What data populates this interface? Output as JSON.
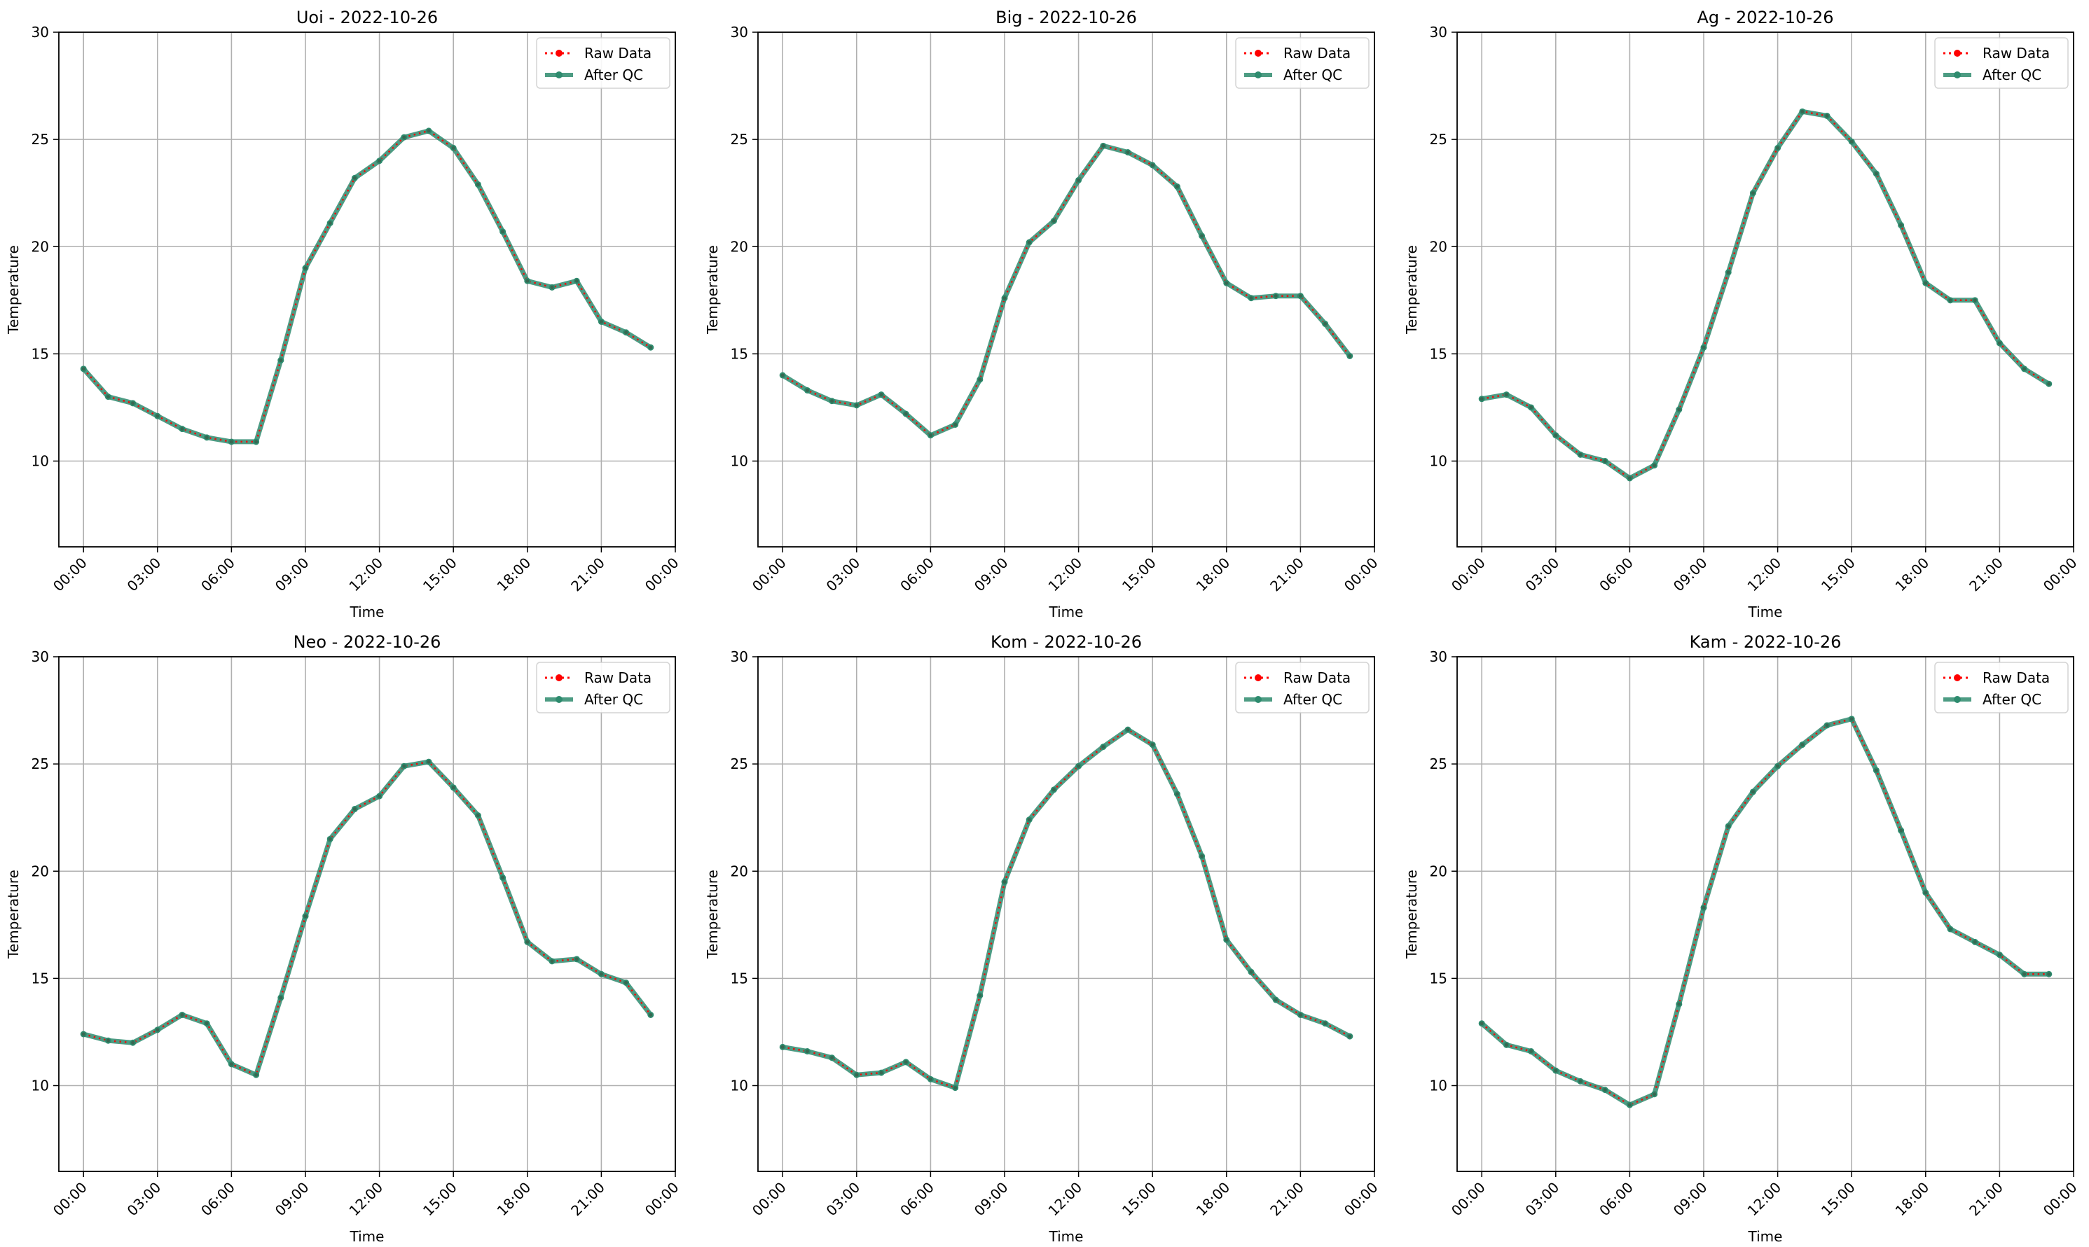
{
  "colors": {
    "raw": "#ff0000",
    "after_qc": "#2e8b6e",
    "grid": "#b0b0b0",
    "axis": "#000000"
  },
  "chart_data": [
    {
      "type": "line",
      "title": "Uoi - 2022-10-26",
      "xlabel": "Time",
      "ylabel": "Temperature",
      "ylim": [
        6,
        30
      ],
      "xlim_hours": [
        -1,
        24
      ],
      "yticks": [
        10,
        15,
        20,
        25,
        30
      ],
      "xticks": [
        "00:00",
        "03:00",
        "06:00",
        "09:00",
        "12:00",
        "15:00",
        "18:00",
        "21:00",
        "00:00"
      ],
      "grid": true,
      "legend": "top-right",
      "x_hours": [
        0,
        1,
        2,
        3,
        4,
        5,
        6,
        7,
        8,
        9,
        10,
        11,
        12,
        13,
        14,
        15,
        16,
        17,
        18,
        19,
        20,
        21,
        22,
        23
      ],
      "series": [
        {
          "name": "Raw Data",
          "values": [
            14.3,
            13.0,
            12.7,
            12.1,
            11.5,
            11.1,
            10.9,
            10.9,
            14.7,
            19.0,
            21.1,
            23.2,
            24.0,
            25.1,
            25.4,
            24.6,
            22.9,
            20.7,
            18.4,
            18.1,
            18.4,
            16.5,
            16.0,
            15.3
          ]
        },
        {
          "name": "After QC",
          "values": [
            14.3,
            13.0,
            12.7,
            12.1,
            11.5,
            11.1,
            10.9,
            10.9,
            14.7,
            19.0,
            21.1,
            23.2,
            24.0,
            25.1,
            25.4,
            24.6,
            22.9,
            20.7,
            18.4,
            18.1,
            18.4,
            16.5,
            16.0,
            15.3
          ]
        }
      ]
    },
    {
      "type": "line",
      "title": "Big - 2022-10-26",
      "xlabel": "Time",
      "ylabel": "Temperature",
      "ylim": [
        6,
        30
      ],
      "xlim_hours": [
        -1,
        24
      ],
      "yticks": [
        10,
        15,
        20,
        25,
        30
      ],
      "xticks": [
        "00:00",
        "03:00",
        "06:00",
        "09:00",
        "12:00",
        "15:00",
        "18:00",
        "21:00",
        "00:00"
      ],
      "grid": true,
      "legend": "top-right",
      "x_hours": [
        0,
        1,
        2,
        3,
        4,
        5,
        6,
        7,
        8,
        9,
        10,
        11,
        12,
        13,
        14,
        15,
        16,
        17,
        18,
        19,
        20,
        21,
        22,
        23
      ],
      "series": [
        {
          "name": "Raw Data",
          "values": [
            14.0,
            13.3,
            12.8,
            12.6,
            13.1,
            12.2,
            11.2,
            11.7,
            13.8,
            17.6,
            20.2,
            21.2,
            23.1,
            24.7,
            24.4,
            23.8,
            22.8,
            20.5,
            18.3,
            17.6,
            17.7,
            17.7,
            16.4,
            14.9
          ]
        },
        {
          "name": "After QC",
          "values": [
            14.0,
            13.3,
            12.8,
            12.6,
            13.1,
            12.2,
            11.2,
            11.7,
            13.8,
            17.6,
            20.2,
            21.2,
            23.1,
            24.7,
            24.4,
            23.8,
            22.8,
            20.5,
            18.3,
            17.6,
            17.7,
            17.7,
            16.4,
            14.9
          ]
        }
      ]
    },
    {
      "type": "line",
      "title": "Ag - 2022-10-26",
      "xlabel": "Time",
      "ylabel": "Temperature",
      "ylim": [
        6,
        30
      ],
      "xlim_hours": [
        -1,
        24
      ],
      "yticks": [
        10,
        15,
        20,
        25,
        30
      ],
      "xticks": [
        "00:00",
        "03:00",
        "06:00",
        "09:00",
        "12:00",
        "15:00",
        "18:00",
        "21:00",
        "00:00"
      ],
      "grid": true,
      "legend": "top-right",
      "x_hours": [
        0,
        1,
        2,
        3,
        4,
        5,
        6,
        7,
        8,
        9,
        10,
        11,
        12,
        13,
        14,
        15,
        16,
        17,
        18,
        19,
        20,
        21,
        22,
        23
      ],
      "series": [
        {
          "name": "Raw Data",
          "values": [
            12.9,
            13.1,
            12.5,
            11.2,
            10.3,
            10.0,
            9.2,
            9.8,
            12.4,
            15.3,
            18.8,
            22.5,
            24.6,
            26.3,
            26.1,
            24.9,
            23.4,
            21.0,
            18.3,
            17.5,
            17.5,
            15.5,
            14.3,
            13.6
          ]
        },
        {
          "name": "After QC",
          "values": [
            12.9,
            13.1,
            12.5,
            11.2,
            10.3,
            10.0,
            9.2,
            9.8,
            12.4,
            15.3,
            18.8,
            22.5,
            24.6,
            26.3,
            26.1,
            24.9,
            23.4,
            21.0,
            18.3,
            17.5,
            17.5,
            15.5,
            14.3,
            13.6
          ]
        }
      ]
    },
    {
      "type": "line",
      "title": "Neo - 2022-10-26",
      "xlabel": "Time",
      "ylabel": "Temperature",
      "ylim": [
        6,
        30
      ],
      "xlim_hours": [
        -1,
        24
      ],
      "yticks": [
        10,
        15,
        20,
        25,
        30
      ],
      "xticks": [
        "00:00",
        "03:00",
        "06:00",
        "09:00",
        "12:00",
        "15:00",
        "18:00",
        "21:00",
        "00:00"
      ],
      "grid": true,
      "legend": "top-right",
      "x_hours": [
        0,
        1,
        2,
        3,
        4,
        5,
        6,
        7,
        8,
        9,
        10,
        11,
        12,
        13,
        14,
        15,
        16,
        17,
        18,
        19,
        20,
        21,
        22,
        23
      ],
      "series": [
        {
          "name": "Raw Data",
          "values": [
            12.4,
            12.1,
            12.0,
            12.6,
            13.3,
            12.9,
            11.0,
            10.5,
            14.1,
            17.9,
            21.5,
            22.9,
            23.5,
            24.9,
            25.1,
            23.9,
            22.6,
            19.7,
            16.7,
            15.8,
            15.9,
            15.2,
            14.8,
            13.3
          ]
        },
        {
          "name": "After QC",
          "values": [
            12.4,
            12.1,
            12.0,
            12.6,
            13.3,
            12.9,
            11.0,
            10.5,
            14.1,
            17.9,
            21.5,
            22.9,
            23.5,
            24.9,
            25.1,
            23.9,
            22.6,
            19.7,
            16.7,
            15.8,
            15.9,
            15.2,
            14.8,
            13.3
          ]
        }
      ]
    },
    {
      "type": "line",
      "title": "Kom - 2022-10-26",
      "xlabel": "Time",
      "ylabel": "Temperature",
      "ylim": [
        6,
        30
      ],
      "xlim_hours": [
        -1,
        24
      ],
      "yticks": [
        10,
        15,
        20,
        25,
        30
      ],
      "xticks": [
        "00:00",
        "03:00",
        "06:00",
        "09:00",
        "12:00",
        "15:00",
        "18:00",
        "21:00",
        "00:00"
      ],
      "grid": true,
      "legend": "top-right",
      "x_hours": [
        0,
        1,
        2,
        3,
        4,
        5,
        6,
        7,
        8,
        9,
        10,
        11,
        12,
        13,
        14,
        15,
        16,
        17,
        18,
        19,
        20,
        21,
        22,
        23
      ],
      "series": [
        {
          "name": "Raw Data",
          "values": [
            11.8,
            11.6,
            11.3,
            10.5,
            10.6,
            11.1,
            10.3,
            9.9,
            14.2,
            19.5,
            22.4,
            23.8,
            24.9,
            25.8,
            26.6,
            25.9,
            23.6,
            20.7,
            16.8,
            15.3,
            14.0,
            13.3,
            12.9,
            12.3
          ]
        },
        {
          "name": "After QC",
          "values": [
            11.8,
            11.6,
            11.3,
            10.5,
            10.6,
            11.1,
            10.3,
            9.9,
            14.2,
            19.5,
            22.4,
            23.8,
            24.9,
            25.8,
            26.6,
            25.9,
            23.6,
            20.7,
            16.8,
            15.3,
            14.0,
            13.3,
            12.9,
            12.3
          ]
        }
      ]
    },
    {
      "type": "line",
      "title": "Kam - 2022-10-26",
      "xlabel": "Time",
      "ylabel": "Temperature",
      "ylim": [
        6,
        30
      ],
      "xlim_hours": [
        -1,
        24
      ],
      "yticks": [
        10,
        15,
        20,
        25,
        30
      ],
      "xticks": [
        "00:00",
        "03:00",
        "06:00",
        "09:00",
        "12:00",
        "15:00",
        "18:00",
        "21:00",
        "00:00"
      ],
      "grid": true,
      "legend": "top-right",
      "x_hours": [
        0,
        1,
        2,
        3,
        4,
        5,
        6,
        7,
        8,
        9,
        10,
        11,
        12,
        13,
        14,
        15,
        16,
        17,
        18,
        19,
        20,
        21,
        22,
        23
      ],
      "series": [
        {
          "name": "Raw Data",
          "values": [
            12.9,
            11.9,
            11.6,
            10.7,
            10.2,
            9.8,
            9.1,
            9.6,
            13.8,
            18.3,
            22.1,
            23.7,
            24.9,
            25.9,
            26.8,
            27.1,
            24.7,
            21.9,
            19.0,
            17.3,
            16.7,
            16.1,
            15.2,
            15.2
          ]
        },
        {
          "name": "After QC",
          "values": [
            12.9,
            11.9,
            11.6,
            10.7,
            10.2,
            9.8,
            9.1,
            9.6,
            13.8,
            18.3,
            22.1,
            23.7,
            24.9,
            25.9,
            26.8,
            27.1,
            24.7,
            21.9,
            19.0,
            17.3,
            16.7,
            16.1,
            15.2,
            15.2
          ]
        }
      ]
    }
  ]
}
